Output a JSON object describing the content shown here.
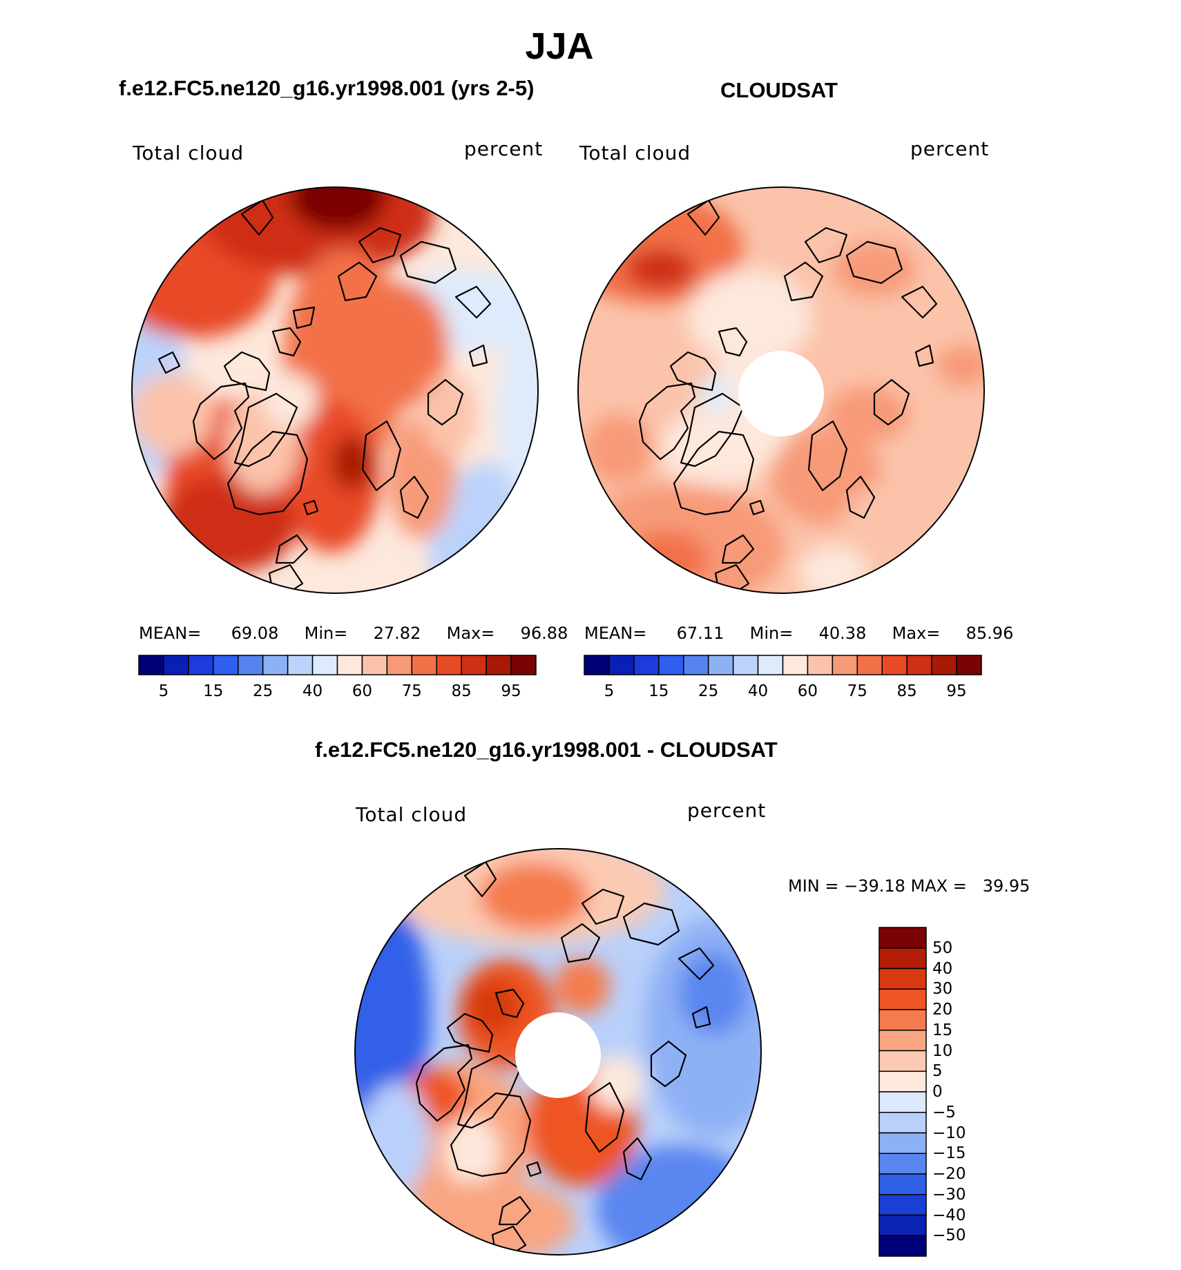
{
  "title": "JJA",
  "panels": [
    {
      "title": "f.e12.FC5.ne120_g16.yr1998.001 (yrs 2-5)",
      "left_label": "Total cloud",
      "right_label": "percent",
      "stats": {
        "mean_label": "MEAN=",
        "mean": "69.08",
        "min_label": "Min=",
        "min": "27.82",
        "max_label": "Max=",
        "max": "96.88"
      },
      "colorbar_ticks": [
        "5",
        "15",
        "25",
        "40",
        "60",
        "75",
        "85",
        "95"
      ]
    },
    {
      "title": "CLOUDSAT",
      "left_label": "Total cloud",
      "right_label": "percent",
      "stats": {
        "mean_label": "MEAN=",
        "mean": "67.11",
        "min_label": "Min=",
        "min": "40.38",
        "max_label": "Max=",
        "max": "85.96"
      },
      "colorbar_ticks": [
        "5",
        "15",
        "25",
        "40",
        "60",
        "75",
        "85",
        "95"
      ]
    },
    {
      "title": "f.e12.FC5.ne120_g16.yr1998.001 - CLOUDSAT",
      "left_label": "Total cloud",
      "right_label": "percent",
      "minmax": "MIN = −39.18 MAX =   39.95",
      "colorbar_ticks": [
        "50",
        "40",
        "30",
        "20",
        "15",
        "10",
        "5",
        "0",
        "−5",
        "−10",
        "−15",
        "−20",
        "−30",
        "−40",
        "−50"
      ]
    }
  ],
  "colors": {
    "abs_scale": [
      "#00007a",
      "#0a1fb8",
      "#1c3ddb",
      "#2f5ef0",
      "#5583f0",
      "#8eb1f5",
      "#bcd3fb",
      "#ddebfc",
      "#fde8dc",
      "#fbc3aa",
      "#f79a78",
      "#f27149",
      "#e84a26",
      "#cf2f12",
      "#a81a06",
      "#7a0403"
    ],
    "diff_scale": [
      "#7a0403",
      "#b41d07",
      "#d73a10",
      "#ee5424",
      "#f57b4e",
      "#f9a581",
      "#fccab2",
      "#fde8dc",
      "#dbe9fc",
      "#b9d0fa",
      "#8eb0f5",
      "#5a86f0",
      "#3160e8",
      "#1a3fd5",
      "#0c22b0",
      "#00007a"
    ]
  }
}
